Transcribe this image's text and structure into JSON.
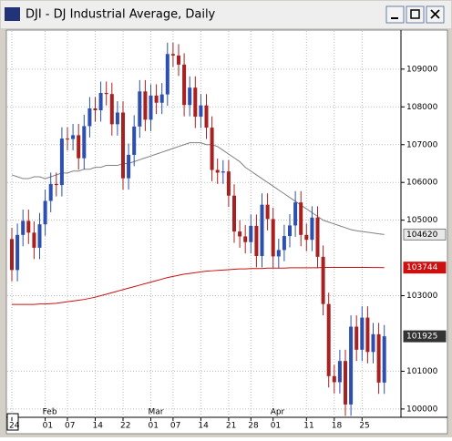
{
  "chart_data": {
    "type": "candlestick",
    "title": "DJI - DJ Industrial Average, Daily",
    "categories": [
      "24",
      null,
      null,
      null,
      null,
      null,
      "01",
      null,
      null,
      null,
      "07",
      null,
      null,
      null,
      null,
      "14",
      null,
      null,
      null,
      null,
      "22",
      null,
      null,
      null,
      null,
      "01",
      null,
      null,
      null,
      "07",
      null,
      null,
      null,
      null,
      "14",
      null,
      null,
      null,
      null,
      "21",
      null,
      null,
      null,
      "28",
      null,
      null,
      null,
      "01",
      null,
      null,
      null,
      null,
      null,
      "11",
      null,
      null,
      null,
      null,
      "18",
      null,
      null,
      null,
      null,
      "25",
      null,
      null,
      null,
      null
    ],
    "months": [
      null,
      null,
      null,
      null,
      null,
      null,
      "Feb",
      null,
      null,
      null,
      null,
      null,
      null,
      null,
      null,
      null,
      null,
      null,
      null,
      null,
      null,
      null,
      null,
      null,
      null,
      "Mar",
      null,
      null,
      null,
      null,
      null,
      null,
      null,
      null,
      null,
      null,
      null,
      null,
      null,
      null,
      null,
      null,
      null,
      null,
      null,
      null,
      null,
      "Apr",
      null,
      null,
      null,
      null,
      null,
      null,
      null,
      null,
      null,
      null,
      null,
      null,
      null,
      null,
      null,
      null,
      null,
      null,
      null,
      null
    ],
    "ohlc": [
      [
        104500,
        104800,
        103380,
        103680
      ],
      [
        103680,
        104910,
        103380,
        104610
      ],
      [
        104610,
        105280,
        104310,
        104980
      ],
      [
        104980,
        105280,
        104370,
        104670
      ],
      [
        104670,
        104970,
        103970,
        104270
      ],
      [
        104270,
        105190,
        103970,
        104890
      ],
      [
        104890,
        105810,
        104590,
        105510
      ],
      [
        105510,
        106260,
        105210,
        105960
      ],
      [
        105960,
        106260,
        105630,
        105930
      ],
      [
        105930,
        107460,
        105630,
        107160
      ],
      [
        107160,
        107460,
        106850,
        107150
      ],
      [
        107150,
        107550,
        106850,
        107250
      ],
      [
        107250,
        107550,
        106340,
        106640
      ],
      [
        106640,
        107790,
        106340,
        107490
      ],
      [
        107490,
        108260,
        107190,
        107960
      ],
      [
        107960,
        108260,
        107610,
        107910
      ],
      [
        107910,
        108670,
        107610,
        108370
      ],
      [
        108370,
        108670,
        108040,
        108340
      ],
      [
        108340,
        108640,
        107240,
        107540
      ],
      [
        107540,
        108150,
        107240,
        107850
      ],
      [
        107850,
        108150,
        105810,
        106110
      ],
      [
        106110,
        107030,
        105810,
        106730
      ],
      [
        106730,
        107780,
        106430,
        107480
      ],
      [
        107480,
        108710,
        107180,
        108410
      ],
      [
        108410,
        108710,
        107360,
        107660
      ],
      [
        107660,
        108600,
        107360,
        108300
      ],
      [
        108300,
        108600,
        107810,
        108110
      ],
      [
        108110,
        108630,
        107810,
        108330
      ],
      [
        108330,
        109700,
        108030,
        109400
      ],
      [
        109400,
        109700,
        109060,
        109360
      ],
      [
        109360,
        109660,
        108820,
        109120
      ],
      [
        109120,
        109420,
        107750,
        108050
      ],
      [
        108050,
        108810,
        107750,
        108510
      ],
      [
        108510,
        108810,
        107440,
        107740
      ],
      [
        107740,
        108340,
        107440,
        108040
      ],
      [
        108040,
        108340,
        107150,
        107450
      ],
      [
        107450,
        107750,
        106030,
        106330
      ],
      [
        106330,
        106630,
        105960,
        106260
      ],
      [
        106260,
        106590,
        105960,
        106290
      ],
      [
        106290,
        106590,
        105350,
        105650
      ],
      [
        105650,
        105950,
        104400,
        104700
      ],
      [
        104700,
        105000,
        104270,
        104570
      ],
      [
        104570,
        104870,
        104120,
        104420
      ],
      [
        104420,
        105150,
        104120,
        104850
      ],
      [
        104850,
        105150,
        103750,
        104050
      ],
      [
        104050,
        105710,
        103750,
        105410
      ],
      [
        105410,
        105710,
        104730,
        105030
      ],
      [
        105030,
        105330,
        103740,
        104040
      ],
      [
        104040,
        104510,
        103740,
        104210
      ],
      [
        104210,
        104880,
        103910,
        104580
      ],
      [
        104580,
        105160,
        104280,
        104860
      ],
      [
        104860,
        105770,
        104560,
        105470
      ],
      [
        105470,
        105770,
        104310,
        104610
      ],
      [
        104610,
        104910,
        104180,
        104480
      ],
      [
        104480,
        105370,
        104180,
        105070
      ],
      [
        105070,
        105370,
        103730,
        104030
      ],
      [
        104030,
        104330,
        102480,
        102780
      ],
      [
        102780,
        103080,
        100570,
        100870
      ],
      [
        100870,
        101170,
        100410,
        100710
      ],
      [
        100710,
        101570,
        100410,
        101270
      ],
      [
        101270,
        101570,
        99820,
        100120
      ],
      [
        100120,
        102480,
        99820,
        102180
      ],
      [
        102180,
        102480,
        101270,
        101570
      ],
      [
        101570,
        102720,
        101270,
        102420
      ],
      [
        102420,
        102720,
        101210,
        101510
      ],
      [
        101510,
        102280,
        101210,
        101980
      ],
      [
        101980,
        102280,
        100400,
        100700
      ],
      [
        100700,
        102225,
        100400,
        101925
      ]
    ],
    "up_color": "#2c4fb0",
    "down_color": "#a82020",
    "series": [
      {
        "color": "#808080",
        "values": [
          106200,
          106150,
          106100,
          106100,
          106150,
          106150,
          106100,
          106150,
          106200,
          106250,
          106250,
          106300,
          106300,
          106350,
          106350,
          106400,
          106400,
          106450,
          106450,
          106450,
          106500,
          106500,
          106550,
          106600,
          106650,
          106700,
          106750,
          106800,
          106850,
          106900,
          106950,
          107000,
          107050,
          107050,
          107050,
          107000,
          107000,
          106950,
          106850,
          106750,
          106650,
          106550,
          106400,
          106300,
          106200,
          106100,
          106000,
          105900,
          105800,
          105700,
          105600,
          105500,
          105400,
          105300,
          105200,
          105100,
          105000,
          104950,
          104900,
          104850,
          104800,
          104750,
          104720,
          104700,
          104680,
          104660,
          104640,
          104620
        ]
      },
      {
        "color": "#cc1010",
        "values": [
          102770,
          102770,
          102770,
          102770,
          102770,
          102780,
          102780,
          102790,
          102800,
          102820,
          102840,
          102860,
          102880,
          102900,
          102930,
          102960,
          103000,
          103040,
          103080,
          103120,
          103160,
          103200,
          103240,
          103280,
          103320,
          103360,
          103400,
          103440,
          103480,
          103510,
          103540,
          103570,
          103590,
          103610,
          103630,
          103650,
          103660,
          103670,
          103680,
          103690,
          103700,
          103710,
          103710,
          103720,
          103720,
          103720,
          103730,
          103730,
          103730,
          103730,
          103740,
          103740,
          103740,
          103740,
          103740,
          103740,
          103750,
          103750,
          103750,
          103750,
          103750,
          103750,
          103750,
          103750,
          103750,
          103745,
          103745,
          103744
        ]
      }
    ],
    "ylim": [
      99780,
      110010
    ],
    "yticks": [
      100000,
      101000,
      103000,
      105000,
      106000,
      107000,
      108000,
      109000
    ],
    "grid": true
  }
}
